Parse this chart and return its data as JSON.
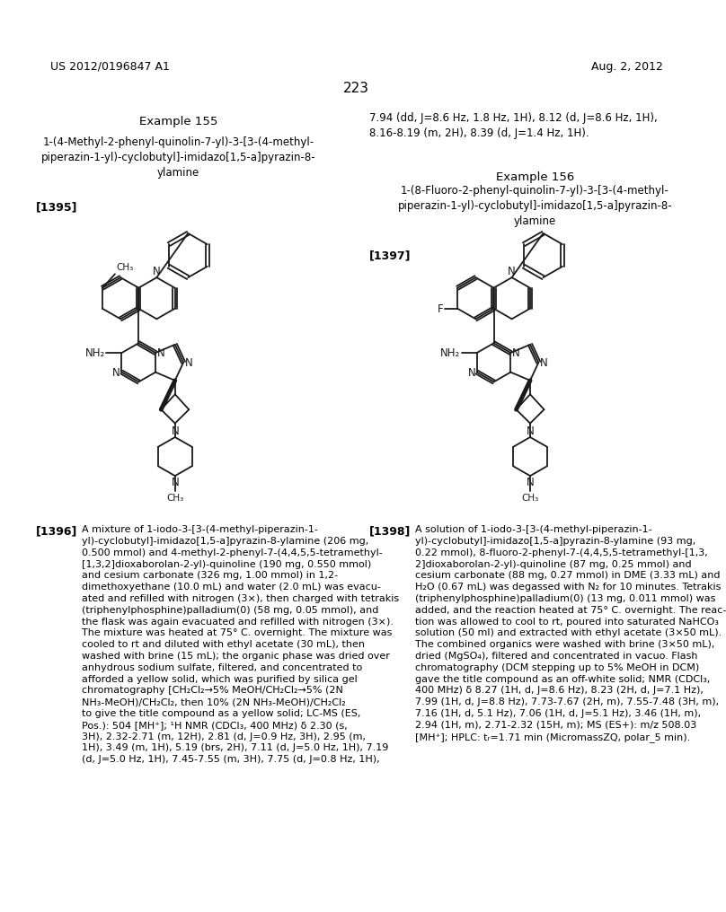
{
  "page_number": "223",
  "header_left": "US 2012/0196847 A1",
  "header_right": "Aug. 2, 2012",
  "background_color": "#ffffff",
  "text_color": "#000000",
  "example155_title": "Example 155",
  "example155_name": "1-(4-Methyl-2-phenyl-quinolin-7-yl)-3-[3-(4-methyl-\npiperazin-1-yl)-cyclobutyl]-imidazo[1,5-a]pyrazin-8-\nylamine",
  "example155_tag": "[1395]",
  "example156_title": "Example 156",
  "example156_name": "1-(8-Fluoro-2-phenyl-quinolin-7-yl)-3-[3-(4-methyl-\npiperazin-1-yl)-cyclobutyl]-imidazo[1,5-a]pyrazin-8-\nylamine",
  "example156_tag": "[1397]",
  "right_text_top": "7.94 (dd, J=8.6 Hz, 1.8 Hz, 1H), 8.12 (d, J=8.6 Hz, 1H),\n8.16-8.19 (m, 2H), 8.39 (d, J=1.4 Hz, 1H).",
  "example1396_tag": "[1396]",
  "example1396_text": "A mixture of 1-iodo-3-[3-(4-methyl-piperazin-1-\nyl)-cyclobutyl]-imidazo[1,5-a]pyrazin-8-ylamine (206 mg,\n0.500 mmol) and 4-methyl-2-phenyl-7-(4,4,5,5-tetramethyl-\n[1,3,2]dioxaborolan-2-yl)-quinoline (190 mg, 0.550 mmol)\nand cesium carbonate (326 mg, 1.00 mmol) in 1,2-\ndimethoxyethane (10.0 mL) and water (2.0 mL) was evacu-\nated and refilled with nitrogen (3×), then charged with tetrakis\n(triphenylphosphine)palladium(0) (58 mg, 0.05 mmol), and\nthe flask was again evacuated and refilled with nitrogen (3×).\nThe mixture was heated at 75° C. overnight. The mixture was\ncooled to rt and diluted with ethyl acetate (30 mL), then\nwashed with brine (15 mL); the organic phase was dried over\nanhydrous sodium sulfate, filtered, and concentrated to\nafforded a yellow solid, which was purified by silica gel\nchromatography [CH₂Cl₂→5% MeOH/CH₂Cl₂→5% (2N\nNH₃-MeOH)/CH₂Cl₂, then 10% (2N NH₃-MeOH)/CH₂Cl₂\nto give the title compound as a yellow solid; LC-MS (ES,\nPos.): 504 [MH⁺]; ¹H NMR (CDCl₃, 400 MHz) δ 2.30 (s,\n3H), 2.32-2.71 (m, 12H), 2.81 (d, J=0.9 Hz, 3H), 2.95 (m,\n1H), 3.49 (m, 1H), 5.19 (brs, 2H), 7.11 (d, J=5.0 Hz, 1H), 7.19\n(d, J=5.0 Hz, 1H), 7.45-7.55 (m, 3H), 7.75 (d, J=0.8 Hz, 1H),",
  "example1398_tag": "[1398]",
  "example1398_text": "A solution of 1-iodo-3-[3-(4-methyl-piperazin-1-\nyl)-cyclobutyl]-imidazo[1,5-a]pyrazin-8-ylamine (93 mg,\n0.22 mmol), 8-fluoro-2-phenyl-7-(4,4,5,5-tetramethyl-[1,3,\n2]dioxaborolan-2-yl)-quinoline (87 mg, 0.25 mmol) and\ncesium carbonate (88 mg, 0.27 mmol) in DME (3.33 mL) and\nH₂O (0.67 mL) was degassed with N₂ for 10 minutes. Tetrakis\n(triphenylphosphine)palladium(0) (13 mg, 0.011 mmol) was\nadded, and the reaction heated at 75° C. overnight. The reac-\ntion was allowed to cool to rt, poured into saturated NaHCO₃\nsolution (50 ml) and extracted with ethyl acetate (3×50 mL).\nThe combined organics were washed with brine (3×50 mL),\ndried (MgSO₄), filtered and concentrated in vacuo. Flash\nchromatography (DCM stepping up to 5% MeOH in DCM)\ngave the title compound as an off-white solid; NMR (CDCl₃,\n400 MHz) δ 8.27 (1H, d, J=8.6 Hz), 8.23 (2H, d, J=7.1 Hz),\n7.99 (1H, d, J=8.8 Hz), 7.73-7.67 (2H, m), 7.55-7.48 (3H, m),\n7.16 (1H, d, 5.1 Hz), 7.06 (1H, d, J=5.1 Hz), 3.46 (1H, m),\n2.94 (1H, m), 2.71-2.32 (15H, m); MS (ES+): m/z 508.03\n[MH⁺]; HPLC: tᵣ=1.71 min (MicromassZQ, polar_5 min)."
}
